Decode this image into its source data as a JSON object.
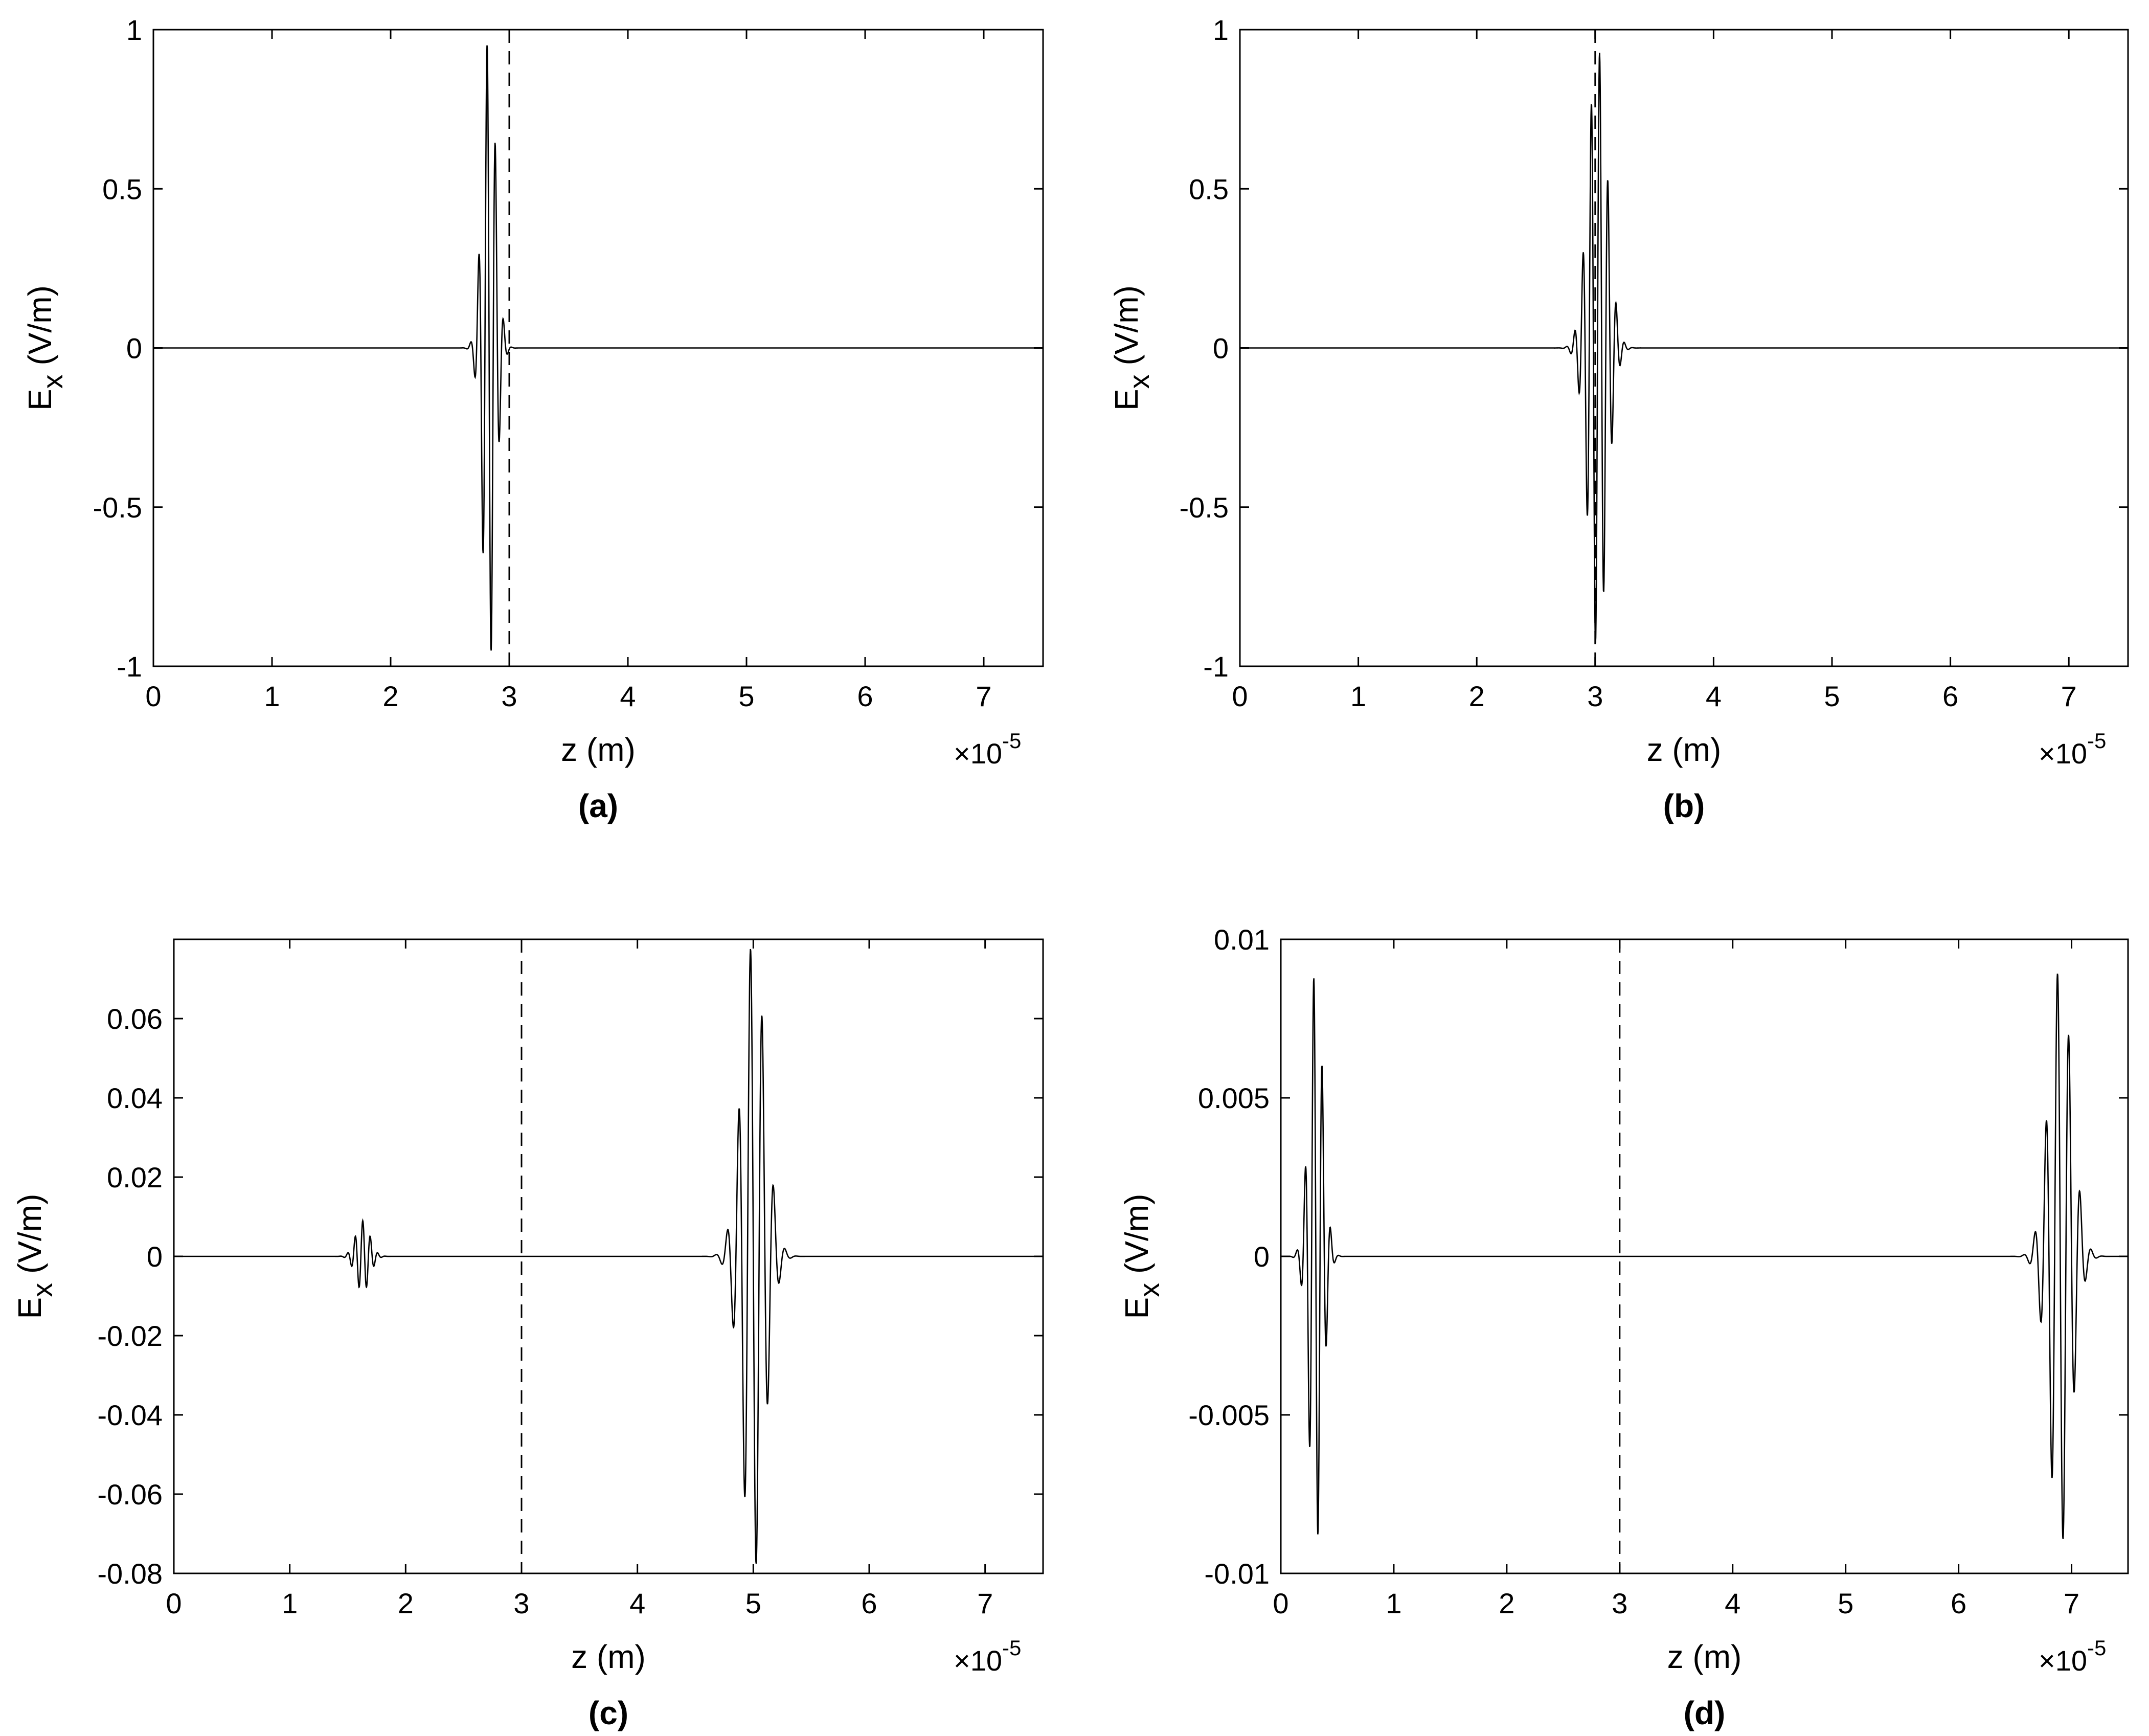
{
  "chart_data": [
    {
      "type": "line",
      "caption": "(a)",
      "xlabel": "z (m)",
      "ylabel_main": "E",
      "ylabel_sub": "x",
      "ylabel_unit": " (V/m)",
      "x_exponent_base": "×10",
      "x_exponent": "-5",
      "xlim": [
        0,
        7.5
      ],
      "ylim": [
        -1,
        1
      ],
      "xticks": [
        "0",
        "1",
        "2",
        "3",
        "4",
        "5",
        "6",
        "7"
      ],
      "yticks": [
        "-1",
        "-0.5",
        "0",
        "0.5",
        "1"
      ],
      "ytick_values": [
        -1,
        -0.5,
        0,
        0.5,
        1
      ],
      "interface_x": 3,
      "pulses": [
        {
          "center": 2.83,
          "amplitude": 1.0,
          "sigma": 0.055,
          "wavelength": 0.07,
          "phase": 1.57
        }
      ]
    },
    {
      "type": "line",
      "caption": "(b)",
      "xlabel": "z (m)",
      "ylabel_main": "E",
      "ylabel_sub": "x",
      "ylabel_unit": " (V/m)",
      "x_exponent_base": "×10",
      "x_exponent": "-5",
      "xlim": [
        0,
        7.5
      ],
      "ylim": [
        -1,
        1
      ],
      "xticks": [
        "0",
        "1",
        "2",
        "3",
        "4",
        "5",
        "6",
        "7"
      ],
      "yticks": [
        "-1",
        "-0.5",
        "0",
        "0.5",
        "1"
      ],
      "ytick_values": [
        -1,
        -0.5,
        0,
        0.5,
        1
      ],
      "interface_x": 3,
      "pulses": [
        {
          "center": 3.02,
          "amplitude": 0.95,
          "sigma": 0.08,
          "wavelength": 0.07,
          "phase": -1.57
        }
      ]
    },
    {
      "type": "line",
      "caption": "(c)",
      "xlabel": "z (m)",
      "ylabel_main": "E",
      "ylabel_sub": "x",
      "ylabel_unit": " (V/m)",
      "x_exponent_base": "×10",
      "x_exponent": "-5",
      "xlim": [
        0,
        7.5
      ],
      "ylim": [
        -0.08,
        0.08
      ],
      "xticks": [
        "0",
        "1",
        "2",
        "3",
        "4",
        "5",
        "6",
        "7"
      ],
      "yticks": [
        "-0.08",
        "-0.06",
        "-0.04",
        "-0.02",
        "0",
        "0.02",
        "0.04",
        "0.06"
      ],
      "ytick_values": [
        -0.08,
        -0.06,
        -0.04,
        -0.02,
        0,
        0.02,
        0.04,
        0.06
      ],
      "interface_x": 3,
      "pulses": [
        {
          "center": 1.63,
          "amplitude": 0.009,
          "sigma": 0.06,
          "wavelength": 0.065,
          "phase": 0
        },
        {
          "center": 5.0,
          "amplitude": 0.08,
          "sigma": 0.1,
          "wavelength": 0.1,
          "phase": 1.57
        }
      ]
    },
    {
      "type": "line",
      "caption": "(d)",
      "xlabel": "z (m)",
      "ylabel_main": "E",
      "ylabel_sub": "x",
      "ylabel_unit": " (V/m)",
      "x_exponent_base": "×10",
      "x_exponent": "-5",
      "xlim": [
        0,
        7.5
      ],
      "ylim": [
        -0.01,
        0.01
      ],
      "xticks": [
        "0",
        "1",
        "2",
        "3",
        "4",
        "5",
        "6",
        "7"
      ],
      "yticks": [
        "-0.01",
        "-0.005",
        "0",
        "0.005",
        "0.01"
      ],
      "ytick_values": [
        -0.01,
        -0.005,
        0,
        0.005,
        0.01
      ],
      "interface_x": 3,
      "pulses": [
        {
          "center": 0.31,
          "amplitude": 0.0092,
          "sigma": 0.06,
          "wavelength": 0.075,
          "phase": 1.57
        },
        {
          "center": 6.9,
          "amplitude": 0.0092,
          "sigma": 0.1,
          "wavelength": 0.1,
          "phase": 1.57
        }
      ]
    }
  ]
}
